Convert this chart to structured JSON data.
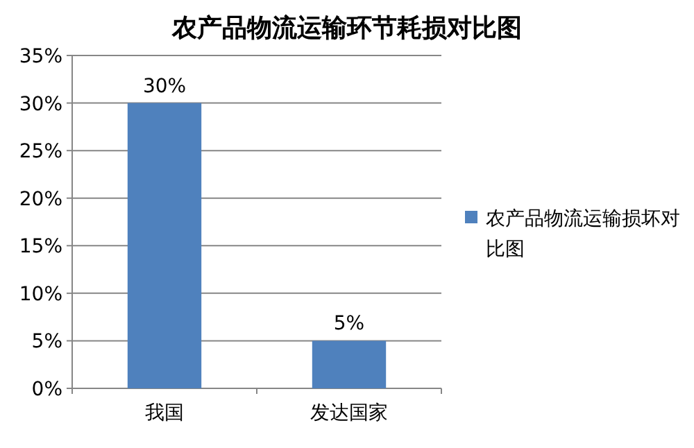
{
  "chart_data": {
    "type": "bar",
    "title": "农产品物流运输环节耗损对比图",
    "categories": [
      "我国",
      "发达国家"
    ],
    "series": [
      {
        "name": "农产品物流运输损坏对比图",
        "color": "#4f81bd",
        "values": [
          30,
          5
        ],
        "value_labels": [
          "30%",
          "5%"
        ]
      }
    ],
    "ylim": [
      0,
      35
    ],
    "yticks": [
      {
        "value": 0,
        "label": "0%"
      },
      {
        "value": 5,
        "label": "5%"
      },
      {
        "value": 10,
        "label": "10%"
      },
      {
        "value": 15,
        "label": "15%"
      },
      {
        "value": 20,
        "label": "20%"
      },
      {
        "value": 25,
        "label": "25%"
      },
      {
        "value": 30,
        "label": "30%"
      },
      {
        "value": 35,
        "label": "35%"
      }
    ],
    "grid": "y",
    "legend": "right"
  }
}
